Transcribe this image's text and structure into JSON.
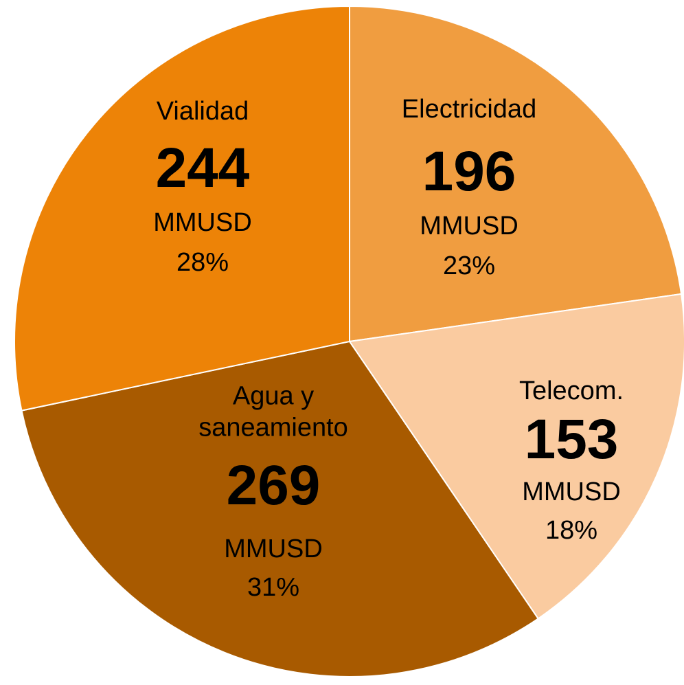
{
  "chart_data": {
    "type": "pie",
    "categories": [
      "Electricidad",
      "Telecom.",
      "Agua y saneamiento",
      "Vialidad"
    ],
    "values": [
      196,
      153,
      269,
      244
    ],
    "unit": "MMUSD",
    "percent_labels": [
      "23%",
      "18%",
      "31%",
      "28%"
    ],
    "colors": [
      "#F09D40",
      "#FACBA0",
      "#A85A00",
      "#ED8307"
    ]
  }
}
